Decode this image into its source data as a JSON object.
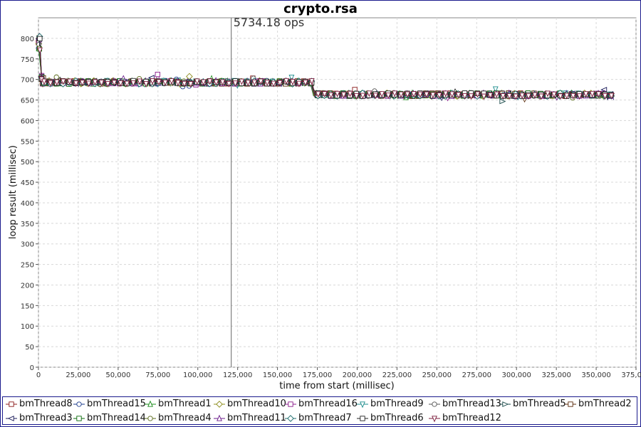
{
  "chart_data": {
    "type": "line",
    "title": "crypto.rsa",
    "annotation": "5734.18 ops",
    "annotation_x": 121000,
    "xlabel": "time from start (millisec)",
    "ylabel": "loop result (millisec)",
    "xlim": [
      0,
      375000
    ],
    "ylim": [
      0,
      850
    ],
    "x_ticks": [
      0,
      25000,
      50000,
      75000,
      100000,
      125000,
      150000,
      175000,
      200000,
      225000,
      250000,
      275000,
      300000,
      325000,
      350000,
      375000
    ],
    "x_tick_labels": [
      "0",
      "25,000",
      "50,000",
      "75,000",
      "100,000",
      "125,000",
      "150,000",
      "175,000",
      "200,000",
      "225,000",
      "250,000",
      "275,000",
      "300,000",
      "325,000",
      "350,000",
      "375,000"
    ],
    "y_ticks": [
      0,
      50,
      100,
      150,
      200,
      250,
      300,
      350,
      400,
      450,
      500,
      550,
      600,
      650,
      700,
      750,
      800
    ],
    "y_tick_labels": [
      "0",
      "50",
      "100",
      "150",
      "200",
      "250",
      "300",
      "350",
      "400",
      "450",
      "500",
      "550",
      "600",
      "650",
      "700",
      "750",
      "800"
    ],
    "grid": true,
    "legend_position": "bottom",
    "series": [
      {
        "name": "bmThread8",
        "color": "#8b1a1a",
        "marker": "square"
      },
      {
        "name": "bmThread15",
        "color": "#1a3a8b",
        "marker": "circle"
      },
      {
        "name": "bmThread1",
        "color": "#1a8b1a",
        "marker": "triangle-up"
      },
      {
        "name": "bmThread10",
        "color": "#8b8b1a",
        "marker": "diamond"
      },
      {
        "name": "bmThread16",
        "color": "#8b1a8b",
        "marker": "square"
      },
      {
        "name": "bmThread9",
        "color": "#1a8b8b",
        "marker": "triangle-down"
      },
      {
        "name": "bmThread13",
        "color": "#555555",
        "marker": "circle"
      },
      {
        "name": "bmThread5",
        "color": "#1a4a4a",
        "marker": "triangle-right"
      },
      {
        "name": "bmThread2",
        "color": "#5a2a0a",
        "marker": "square"
      },
      {
        "name": "bmThread3",
        "color": "#1a1a5a",
        "marker": "triangle-left"
      },
      {
        "name": "bmThread14",
        "color": "#0a6a0a",
        "marker": "square"
      },
      {
        "name": "bmThread4",
        "color": "#5a6a1a",
        "marker": "circle"
      },
      {
        "name": "bmThread11",
        "color": "#6a1a8b",
        "marker": "triangle-up"
      },
      {
        "name": "bmThread7",
        "color": "#1a6a6a",
        "marker": "diamond"
      },
      {
        "name": "bmThread6",
        "color": "#222222",
        "marker": "square"
      },
      {
        "name": "bmThread12",
        "color": "#7a1a3a",
        "marker": "triangle-down"
      }
    ],
    "segments": [
      {
        "x_start": 0,
        "x_end": 2000,
        "y_start": 800,
        "y_end": 700
      },
      {
        "x_start": 2000,
        "x_end": 172000,
        "y": 693
      },
      {
        "x_start": 172000,
        "x_end": 362000,
        "y": 663
      }
    ]
  }
}
